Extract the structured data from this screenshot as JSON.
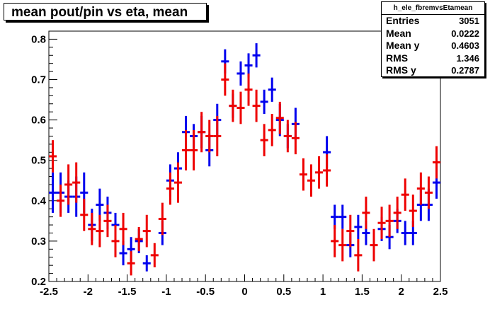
{
  "title": "mean pout/pin vs eta, mean",
  "stats": {
    "name": "h_ele_fbremvsEtamean",
    "rows": [
      {
        "label": "Entries",
        "value": "3051"
      },
      {
        "label": "Mean",
        "value": "0.0222"
      },
      {
        "label": "Mean y",
        "value": "0.4603"
      },
      {
        "label": "RMS",
        "value": "1.346"
      },
      {
        "label": "RMS y",
        "value": "0.2787"
      }
    ]
  },
  "chart_data": {
    "type": "scatter",
    "title": "mean pout/pin vs eta, mean",
    "xlabel": "",
    "ylabel": "",
    "xlim": [
      -2.5,
      2.5
    ],
    "ylim": [
      0.2,
      0.82
    ],
    "xticks": [
      "-2.5",
      "-2",
      "-1.5",
      "-1",
      "-0.5",
      "0",
      "0.5",
      "1",
      "1.5",
      "2",
      "2.5"
    ],
    "yticks": [
      "0.2",
      "0.3",
      "0.4",
      "0.5",
      "0.6",
      "0.7",
      "0.8"
    ],
    "grid": false,
    "bin_half_width": 0.05,
    "series": [
      {
        "color": "#0000ee",
        "points": [
          {
            "x": -2.45,
            "y": 0.42,
            "err": 0.05
          },
          {
            "x": -2.35,
            "y": 0.42,
            "err": 0.05
          },
          {
            "x": -2.25,
            "y": 0.41,
            "err": 0.04
          },
          {
            "x": -2.15,
            "y": 0.41,
            "err": 0.05
          },
          {
            "x": -2.05,
            "y": 0.42,
            "err": 0.05
          },
          {
            "x": -1.95,
            "y": 0.34,
            "err": 0.04
          },
          {
            "x": -1.85,
            "y": 0.39,
            "err": 0.04
          },
          {
            "x": -1.75,
            "y": 0.37,
            "err": 0.04
          },
          {
            "x": -1.65,
            "y": 0.34,
            "err": 0.03
          },
          {
            "x": -1.55,
            "y": 0.27,
            "err": 0.03
          },
          {
            "x": -1.45,
            "y": 0.28,
            "err": 0.03
          },
          {
            "x": -1.35,
            "y": 0.3,
            "err": 0.03
          },
          {
            "x": -1.25,
            "y": 0.245,
            "err": 0.02
          },
          {
            "x": -1.05,
            "y": 0.32,
            "err": 0.03
          },
          {
            "x": -0.95,
            "y": 0.45,
            "err": 0.04
          },
          {
            "x": -0.85,
            "y": 0.48,
            "err": 0.04
          },
          {
            "x": -0.75,
            "y": 0.57,
            "err": 0.04
          },
          {
            "x": -0.65,
            "y": 0.56,
            "err": 0.03
          },
          {
            "x": -0.55,
            "y": 0.57,
            "err": 0.04
          },
          {
            "x": -0.45,
            "y": 0.525,
            "err": 0.04
          },
          {
            "x": -0.35,
            "y": 0.6,
            "err": 0.04
          },
          {
            "x": -0.25,
            "y": 0.745,
            "err": 0.03
          },
          {
            "x": -0.15,
            "y": 0.635,
            "err": 0.03
          },
          {
            "x": -0.05,
            "y": 0.715,
            "err": 0.03
          },
          {
            "x": 0.05,
            "y": 0.735,
            "err": 0.03
          },
          {
            "x": 0.15,
            "y": 0.76,
            "err": 0.03
          },
          {
            "x": 0.25,
            "y": 0.645,
            "err": 0.03
          },
          {
            "x": 0.35,
            "y": 0.675,
            "err": 0.03
          },
          {
            "x": 0.45,
            "y": 0.6,
            "err": 0.04
          },
          {
            "x": 0.55,
            "y": 0.56,
            "err": 0.03
          },
          {
            "x": 0.65,
            "y": 0.59,
            "err": 0.04
          },
          {
            "x": 1.05,
            "y": 0.52,
            "err": 0.04
          },
          {
            "x": 1.15,
            "y": 0.36,
            "err": 0.03
          },
          {
            "x": 1.25,
            "y": 0.36,
            "err": 0.03
          },
          {
            "x": 1.35,
            "y": 0.29,
            "err": 0.03
          },
          {
            "x": 1.45,
            "y": 0.335,
            "err": 0.03
          },
          {
            "x": 1.55,
            "y": 0.32,
            "err": 0.03
          },
          {
            "x": 1.75,
            "y": 0.33,
            "err": 0.03
          },
          {
            "x": 1.85,
            "y": 0.31,
            "err": 0.03
          },
          {
            "x": 1.95,
            "y": 0.35,
            "err": 0.03
          },
          {
            "x": 2.05,
            "y": 0.32,
            "err": 0.03
          },
          {
            "x": 2.15,
            "y": 0.32,
            "err": 0.03
          },
          {
            "x": 2.25,
            "y": 0.39,
            "err": 0.04
          },
          {
            "x": 2.35,
            "y": 0.39,
            "err": 0.04
          },
          {
            "x": 2.45,
            "y": 0.445,
            "err": 0.04
          }
        ]
      },
      {
        "color": "#ee0000",
        "points": [
          {
            "x": -2.45,
            "y": 0.51,
            "err": 0.04
          },
          {
            "x": -2.35,
            "y": 0.4,
            "err": 0.04
          },
          {
            "x": -2.25,
            "y": 0.44,
            "err": 0.05
          },
          {
            "x": -2.15,
            "y": 0.445,
            "err": 0.05
          },
          {
            "x": -2.05,
            "y": 0.365,
            "err": 0.04
          },
          {
            "x": -1.95,
            "y": 0.33,
            "err": 0.04
          },
          {
            "x": -1.85,
            "y": 0.325,
            "err": 0.04
          },
          {
            "x": -1.75,
            "y": 0.35,
            "err": 0.04
          },
          {
            "x": -1.65,
            "y": 0.3,
            "err": 0.04
          },
          {
            "x": -1.55,
            "y": 0.33,
            "err": 0.04
          },
          {
            "x": -1.45,
            "y": 0.245,
            "err": 0.03
          },
          {
            "x": -1.35,
            "y": 0.305,
            "err": 0.03
          },
          {
            "x": -1.25,
            "y": 0.325,
            "err": 0.04
          },
          {
            "x": -1.15,
            "y": 0.265,
            "err": 0.03
          },
          {
            "x": -1.05,
            "y": 0.355,
            "err": 0.04
          },
          {
            "x": -0.95,
            "y": 0.43,
            "err": 0.04
          },
          {
            "x": -0.85,
            "y": 0.445,
            "err": 0.05
          },
          {
            "x": -0.75,
            "y": 0.525,
            "err": 0.05
          },
          {
            "x": -0.65,
            "y": 0.525,
            "err": 0.05
          },
          {
            "x": -0.55,
            "y": 0.57,
            "err": 0.05
          },
          {
            "x": -0.45,
            "y": 0.56,
            "err": 0.04
          },
          {
            "x": -0.35,
            "y": 0.56,
            "err": 0.05
          },
          {
            "x": -0.25,
            "y": 0.7,
            "err": 0.04
          },
          {
            "x": -0.15,
            "y": 0.635,
            "err": 0.04
          },
          {
            "x": -0.05,
            "y": 0.63,
            "err": 0.04
          },
          {
            "x": 0.05,
            "y": 0.675,
            "err": 0.04
          },
          {
            "x": 0.15,
            "y": 0.635,
            "err": 0.04
          },
          {
            "x": 0.25,
            "y": 0.55,
            "err": 0.04
          },
          {
            "x": 0.35,
            "y": 0.575,
            "err": 0.04
          },
          {
            "x": 0.45,
            "y": 0.605,
            "err": 0.04
          },
          {
            "x": 0.55,
            "y": 0.56,
            "err": 0.04
          },
          {
            "x": 0.65,
            "y": 0.555,
            "err": 0.04
          },
          {
            "x": 0.75,
            "y": 0.465,
            "err": 0.04
          },
          {
            "x": 0.85,
            "y": 0.45,
            "err": 0.04
          },
          {
            "x": 0.95,
            "y": 0.47,
            "err": 0.04
          },
          {
            "x": 1.05,
            "y": 0.475,
            "err": 0.04
          },
          {
            "x": 1.15,
            "y": 0.3,
            "err": 0.04
          },
          {
            "x": 1.25,
            "y": 0.29,
            "err": 0.04
          },
          {
            "x": 1.35,
            "y": 0.325,
            "err": 0.04
          },
          {
            "x": 1.45,
            "y": 0.265,
            "err": 0.04
          },
          {
            "x": 1.55,
            "y": 0.37,
            "err": 0.04
          },
          {
            "x": 1.65,
            "y": 0.29,
            "err": 0.04
          },
          {
            "x": 1.75,
            "y": 0.345,
            "err": 0.04
          },
          {
            "x": 1.85,
            "y": 0.35,
            "err": 0.04
          },
          {
            "x": 1.95,
            "y": 0.37,
            "err": 0.04
          },
          {
            "x": 2.05,
            "y": 0.415,
            "err": 0.04
          },
          {
            "x": 2.15,
            "y": 0.375,
            "err": 0.04
          },
          {
            "x": 2.25,
            "y": 0.43,
            "err": 0.04
          },
          {
            "x": 2.35,
            "y": 0.42,
            "err": 0.04
          },
          {
            "x": 2.45,
            "y": 0.495,
            "err": 0.04
          }
        ]
      }
    ]
  }
}
